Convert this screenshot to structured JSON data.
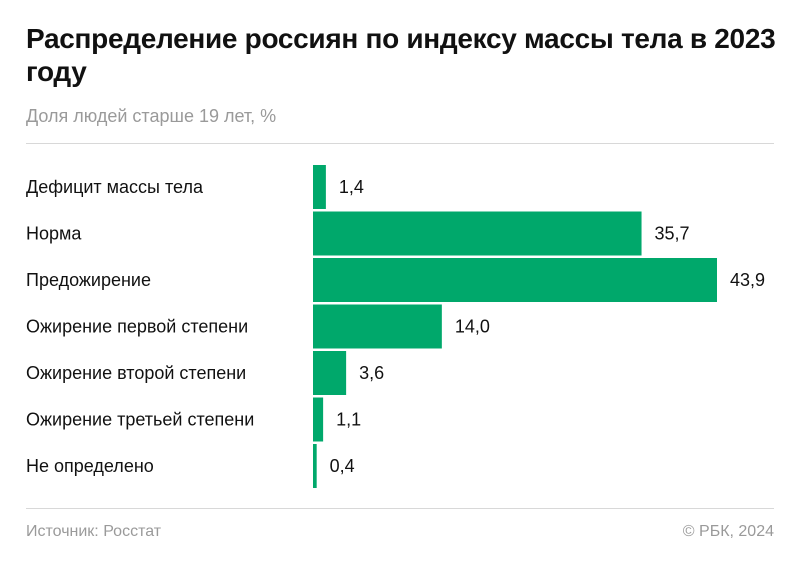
{
  "title": "Распределение россиян по индексу массы тела в 2023 году",
  "subtitle": "Доля людей старше 19 лет, %",
  "footer": {
    "source": "Источник: Росстат",
    "copyright": "© РБК, 2024"
  },
  "chart_data": {
    "type": "bar",
    "orientation": "horizontal",
    "categories": [
      "Дефицит массы тела",
      "Норма",
      "Предожирение",
      "Ожирение первой степени",
      "Ожирение второй степени",
      "Ожирение третьей степени",
      "Не определено"
    ],
    "values": [
      1.4,
      35.7,
      43.9,
      14.0,
      3.6,
      1.1,
      0.4
    ],
    "value_labels": [
      "1,4",
      "35,7",
      "43,9",
      "14,0",
      "3,6",
      "1,1",
      "0,4"
    ],
    "title": "Распределение россиян по индексу массы тела в 2023 году",
    "subtitle": "Доля людей старше 19 лет, %",
    "xlim": [
      0,
      43.9
    ],
    "grid": false,
    "bar_color": "#00a86b"
  }
}
